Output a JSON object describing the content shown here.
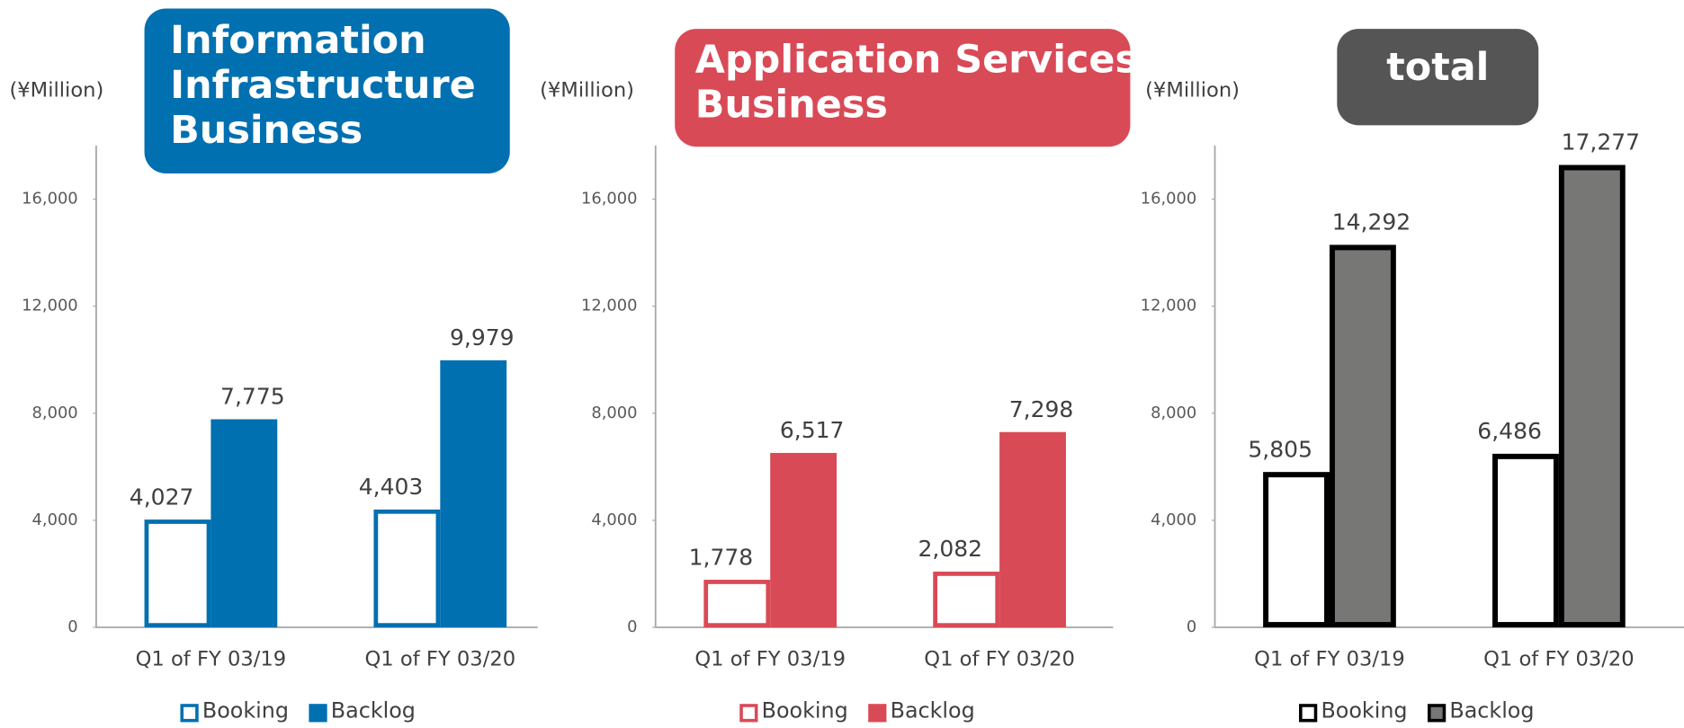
{
  "chart_data": [
    {
      "type": "bar",
      "title": [
        "Information",
        "Infrastructure",
        "Business"
      ],
      "title_color": "#0070b0",
      "unit": "(¥Million)",
      "categories": [
        "Q1 of FY 03/19",
        "Q1 of FY 03/20"
      ],
      "series": [
        {
          "name": "Booking",
          "color": "#0070b0",
          "fill": "#ffffff",
          "values": [
            4027,
            4403
          ],
          "value_labels": [
            "4,027",
            "4,403"
          ]
        },
        {
          "name": "Backlog",
          "color": "#0070b0",
          "fill": "#0070b0",
          "values": [
            7775,
            9979
          ],
          "value_labels": [
            "7,775",
            "9,979"
          ]
        }
      ],
      "ylim": [
        0,
        18000
      ],
      "yticks": [
        0,
        {
          "value": 4000,
          "label": "4,000"
        },
        {
          "value": 8000,
          "label": "8,000"
        },
        {
          "value": 12000,
          "label": "12,000"
        },
        {
          "value": 16000,
          "label": "16,000"
        }
      ]
    },
    {
      "type": "bar",
      "title": [
        "Application Services",
        "Business"
      ],
      "title_color": "#d94a57",
      "unit": "(¥Million)",
      "categories": [
        "Q1 of FY 03/19",
        "Q1 of FY 03/20"
      ],
      "series": [
        {
          "name": "Booking",
          "color": "#d94a57",
          "fill": "#ffffff",
          "values": [
            1778,
            2082
          ],
          "value_labels": [
            "1,778",
            "2,082"
          ]
        },
        {
          "name": "Backlog",
          "color": "#d94a57",
          "fill": "#d94a57",
          "values": [
            6517,
            7298
          ],
          "value_labels": [
            "6,517",
            "7,298"
          ]
        }
      ],
      "ylim": [
        0,
        18000
      ],
      "yticks": [
        0,
        {
          "value": 4000,
          "label": "4,000"
        },
        {
          "value": 8000,
          "label": "8,000"
        },
        {
          "value": 12000,
          "label": "12,000"
        },
        {
          "value": 16000,
          "label": "16,000"
        }
      ]
    },
    {
      "type": "bar",
      "title": [
        "total"
      ],
      "title_color": "#555555",
      "unit": "(¥Million)",
      "categories": [
        "Q1 of FY 03/19",
        "Q1 of FY 03/20"
      ],
      "series": [
        {
          "name": "Booking",
          "color": "#000000",
          "fill": "#ffffff",
          "values": [
            5805,
            6486
          ],
          "value_labels": [
            "5,805",
            "6,486"
          ]
        },
        {
          "name": "Backlog",
          "color": "#000000",
          "fill": "#777876",
          "values": [
            14292,
            17277
          ],
          "value_labels": [
            "14,292",
            "17,277"
          ]
        }
      ],
      "ylim": [
        0,
        18000
      ],
      "yticks": [
        0,
        {
          "value": 4000,
          "label": "4,000"
        },
        {
          "value": 8000,
          "label": "8,000"
        },
        {
          "value": 12000,
          "label": "12,000"
        },
        {
          "value": 16000,
          "label": "16,000"
        }
      ]
    }
  ]
}
